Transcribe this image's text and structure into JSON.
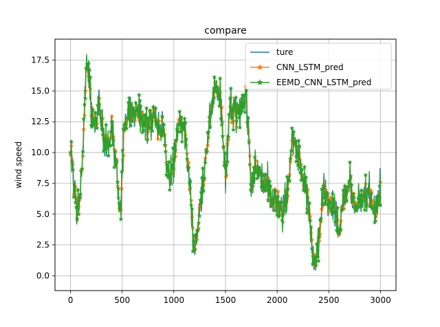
{
  "chart_data": {
    "type": "line",
    "title": "compare",
    "xlabel": "",
    "ylabel": "wind speed",
    "xlim": [
      -150,
      3150
    ],
    "ylim": [
      -1.2,
      19.2
    ],
    "x_ticks": [
      0,
      500,
      1000,
      1500,
      2000,
      2500,
      3000
    ],
    "y_ticks": [
      0.0,
      2.5,
      5.0,
      7.5,
      10.0,
      12.5,
      15.0,
      17.5
    ],
    "x_tick_labels": [
      "0",
      "500",
      "1000",
      "1500",
      "2000",
      "2500",
      "3000"
    ],
    "y_tick_labels": [
      "0.0",
      "2.5",
      "5.0",
      "7.5",
      "10.0",
      "12.5",
      "15.0",
      "17.5"
    ],
    "grid": true,
    "legend_position": "top-right",
    "colors": {
      "ture": "#1f77b4",
      "CNN_LSTM_pred": "#ff7f0e",
      "EEMD_CNN_LSTM_pred": "#2ca02c"
    },
    "series": [
      {
        "name": "ture",
        "marker": "none"
      },
      {
        "name": "CNN_LSTM_pred",
        "marker": "star"
      },
      {
        "name": "EEMD_CNN_LSTM_pred",
        "marker": "star"
      }
    ],
    "x": [
      0,
      30,
      60,
      90,
      120,
      150,
      180,
      210,
      240,
      280,
      320,
      360,
      400,
      440,
      480,
      520,
      560,
      600,
      650,
      700,
      750,
      800,
      850,
      900,
      950,
      1000,
      1050,
      1100,
      1150,
      1200,
      1250,
      1300,
      1350,
      1400,
      1450,
      1500,
      1550,
      1600,
      1650,
      1700,
      1750,
      1800,
      1850,
      1900,
      1950,
      2000,
      2050,
      2100,
      2150,
      2200,
      2250,
      2300,
      2350,
      2400,
      2450,
      2500,
      2550,
      2600,
      2650,
      2700,
      2750,
      2800,
      2850,
      2900,
      2950,
      3000
    ],
    "y": [
      10.0,
      8.0,
      5.0,
      6.0,
      10.5,
      17.0,
      16.0,
      13.0,
      12.0,
      14.5,
      11.0,
      10.5,
      12.0,
      9.0,
      5.0,
      12.0,
      13.5,
      13.0,
      14.0,
      12.5,
      12.0,
      13.0,
      12.5,
      12.0,
      8.0,
      9.0,
      13.0,
      12.0,
      7.5,
      2.0,
      5.0,
      9.0,
      13.0,
      15.5,
      14.5,
      8.0,
      14.0,
      13.0,
      13.5,
      14.5,
      7.0,
      9.0,
      7.5,
      8.0,
      5.5,
      6.0,
      5.0,
      6.5,
      11.0,
      10.0,
      8.0,
      6.0,
      1.0,
      2.5,
      7.0,
      6.0,
      5.5,
      4.0,
      6.5,
      7.5,
      5.5,
      6.0,
      6.5,
      7.0,
      5.0,
      7.5
    ]
  }
}
